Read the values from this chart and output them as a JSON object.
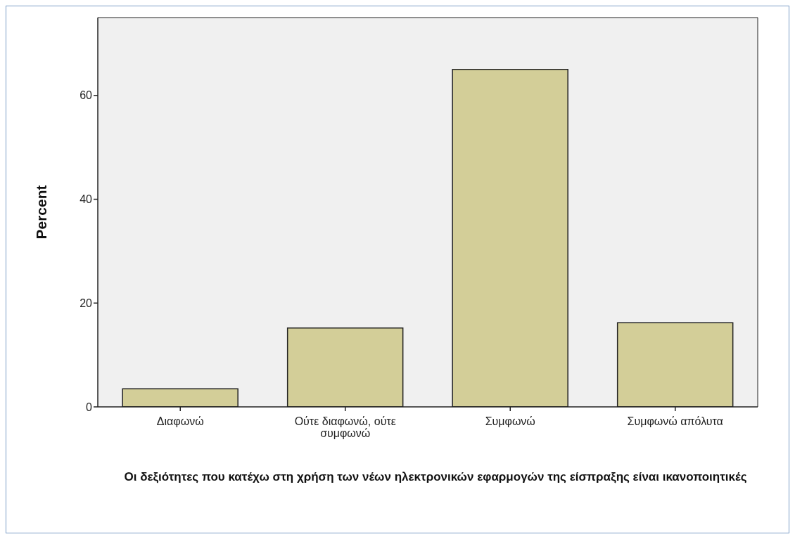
{
  "chart_data": {
    "type": "bar",
    "xlabel": "Οι δεξιότητες που κατέχω στη χρήση των νέων ηλεκτρονικών εφαρμογών της είσπραξης είναι ικανοποιητικές",
    "ylabel": "Percent",
    "categories": [
      "Διαφωνώ",
      "Ούτε διαφωνώ, ούτε συμφωνώ",
      "Συμφωνώ",
      "Συμφωνώ απόλυτα"
    ],
    "values": [
      3.5,
      15.2,
      65.0,
      16.2
    ],
    "color": "#d3ce98",
    "ylim": [
      0,
      75
    ],
    "yticks": [
      0,
      20,
      40,
      60
    ],
    "grid": false,
    "legend": false
  }
}
